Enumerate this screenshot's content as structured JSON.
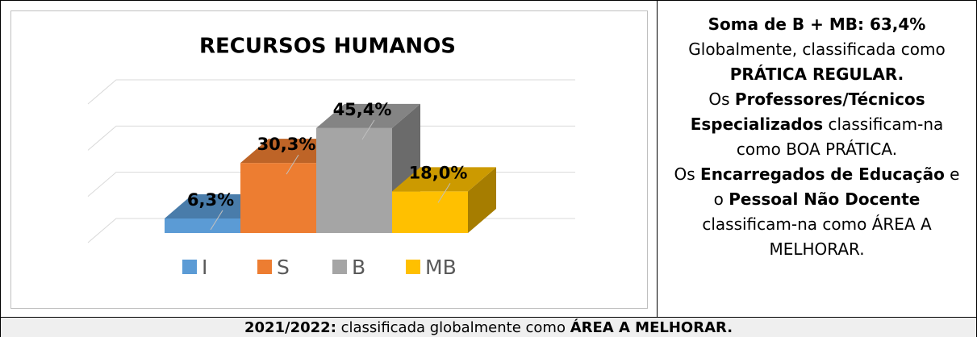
{
  "chart_data": {
    "type": "bar3d",
    "title": "RECURSOS HUMANOS",
    "categories": [
      "I",
      "S",
      "B",
      "MB"
    ],
    "values": [
      6.3,
      30.3,
      45.4,
      18.0
    ],
    "value_labels": [
      "6,3%",
      "30,3%",
      "45,4%",
      "18,0%"
    ],
    "colors": [
      "#5b9bd5",
      "#ed7d31",
      "#a5a5a5",
      "#ffc000"
    ],
    "ylim": [
      0,
      60
    ],
    "yticks": [
      0,
      20,
      40,
      60
    ],
    "grid": true,
    "legend": "bottom"
  },
  "side_text": {
    "lines": [
      [
        {
          "text": "Soma de B + MB: 63,4%",
          "bold": true
        }
      ],
      [
        {
          "text": "Globalmente, classificada como",
          "bold": false
        }
      ],
      [
        {
          "text": "PRÁTICA REGULAR.",
          "bold": true
        }
      ],
      [
        {
          "text": "Os ",
          "bold": false
        },
        {
          "text": "Professores/Técnicos",
          "bold": true
        }
      ],
      [
        {
          "text": "Especializados",
          "bold": true
        },
        {
          "text": " classificam-na",
          "bold": false
        }
      ],
      [
        {
          "text": "como BOA PRÁTICA.",
          "bold": false
        }
      ],
      [
        {
          "text": "Os ",
          "bold": false
        },
        {
          "text": "Encarregados de Educação",
          "bold": true
        },
        {
          "text": " e",
          "bold": false
        }
      ],
      [
        {
          "text": "o ",
          "bold": false
        },
        {
          "text": "Pessoal Não Docente",
          "bold": true
        }
      ],
      [
        {
          "text": "classificam-na como ÁREA A",
          "bold": false
        }
      ],
      [
        {
          "text": "MELHORAR.",
          "bold": false
        }
      ]
    ]
  },
  "footer": {
    "runs": [
      {
        "text": "2021/2022:",
        "bold": true
      },
      {
        "text": " classificada globalmente como ",
        "bold": false
      },
      {
        "text": "ÁREA A MELHORAR.",
        "bold": true
      }
    ]
  }
}
